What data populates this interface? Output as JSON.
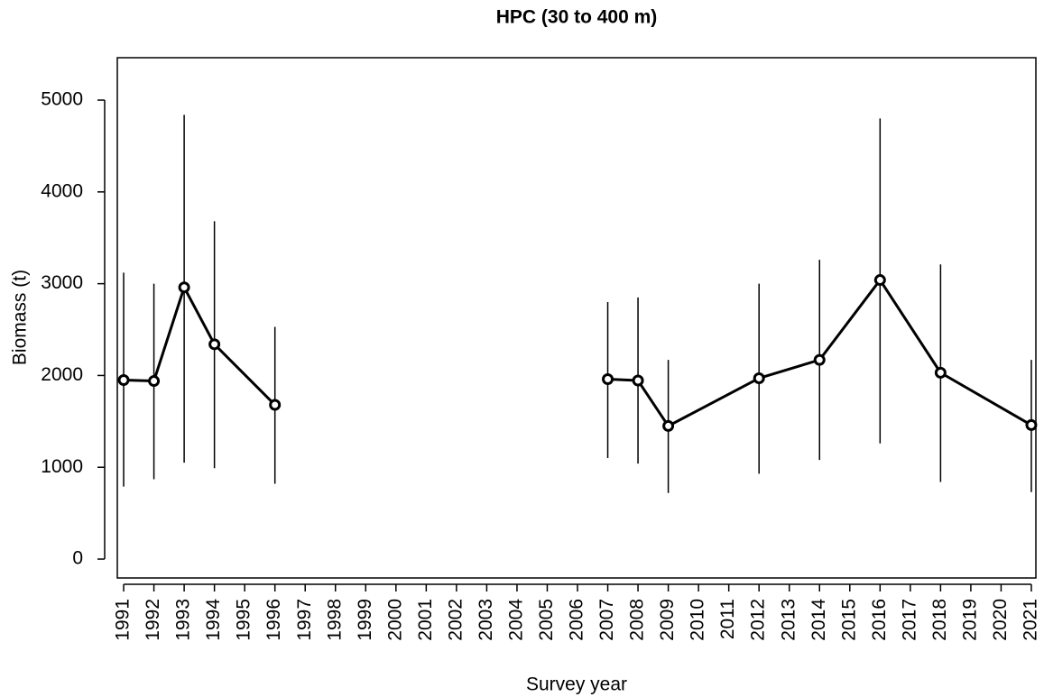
{
  "chart_data": {
    "type": "line",
    "title": "HPC (30 to 400 m)",
    "x_label": "Survey year",
    "y_label": "Biomass (t)",
    "xlim": [
      1990.79,
      2021.15
    ],
    "ylim": [
      -206,
      5462
    ],
    "xticks": [
      1991,
      1992,
      1993,
      1994,
      1995,
      1996,
      1997,
      1998,
      1999,
      2000,
      2001,
      2002,
      2003,
      2004,
      2005,
      2006,
      2007,
      2008,
      2009,
      2010,
      2011,
      2012,
      2013,
      2014,
      2015,
      2016,
      2017,
      2018,
      2019,
      2020,
      2021
    ],
    "yticks": [
      0,
      1000,
      2000,
      3000,
      4000,
      5000
    ],
    "color": "#000000",
    "series": [
      {
        "x": [
          1991,
          1992,
          1993,
          1994,
          1996
        ],
        "values": [
          1950,
          1940,
          2960,
          2340,
          1680
        ],
        "lower": [
          790,
          870,
          1050,
          990,
          820
        ],
        "upper": [
          3120,
          3000,
          4840,
          3680,
          2530
        ]
      },
      {
        "x": [
          2007,
          2008,
          2009,
          2012,
          2014,
          2016,
          2018,
          2021
        ],
        "values": [
          1960,
          1945,
          1450,
          1970,
          2170,
          3040,
          2030,
          1460
        ],
        "lower": [
          1100,
          1040,
          720,
          930,
          1080,
          1260,
          840,
          730
        ],
        "upper": [
          2800,
          2850,
          2170,
          3000,
          3260,
          4800,
          3210,
          2170
        ]
      }
    ]
  }
}
